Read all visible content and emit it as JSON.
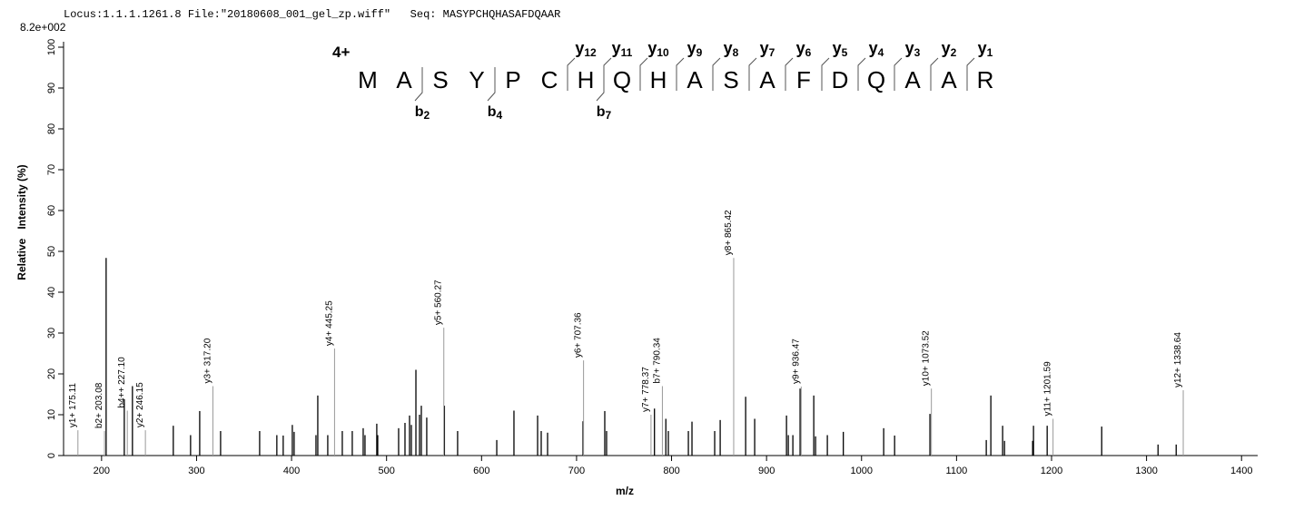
{
  "chart_data": {
    "type": "spectrum",
    "header": "Locus:1.1.1.1261.8 File:\"20180608_001_gel_zp.wiff\"   Seq: MASYPCHQHASAFDQAAR",
    "max_intensity_label": "8.2e+002",
    "x_label": "m/z",
    "y_label": "Relative   Intensity (%)",
    "xlim": [
      160,
      1417
    ],
    "ylim": [
      0,
      101
    ],
    "xticks": [
      200,
      300,
      400,
      500,
      600,
      700,
      800,
      900,
      1000,
      1100,
      1200,
      1300,
      1400
    ],
    "yticks": [
      0,
      10,
      20,
      30,
      40,
      50,
      60,
      70,
      80,
      90,
      100
    ],
    "peak_color": "#000000",
    "annotation_color": "#999999",
    "peaks": {
      "x": [
        204.8,
        223.9,
        232.5,
        275.5,
        293.7,
        303.3,
        325.3,
        366.4,
        384.5,
        391.2,
        400.8,
        402.7,
        425.7,
        427.6,
        438.1,
        453.4,
        463.9,
        475.4,
        477.3,
        489.7,
        490.7,
        512.7,
        519.4,
        524.2,
        526.1,
        530.9,
        534.7,
        536.6,
        542.3,
        560.9,
        574.8,
        616.0,
        634.1,
        659.0,
        662.8,
        669.5,
        706.8,
        729.7,
        731.6,
        782.0,
        794.0,
        796.6,
        817.7,
        821.5,
        845.4,
        851.2,
        878.0,
        887.5,
        921.0,
        922.9,
        927.7,
        935.3,
        949.7,
        951.6,
        964.0,
        980.8,
        1023.3,
        1034.8,
        1072.0,
        1131.3,
        1136.1,
        1148.5,
        1150.5,
        1180.1,
        1181.0,
        1195.4,
        1252.8,
        1312.1,
        1331.2
      ],
      "values": [
        48.4,
        13.8,
        17.0,
        7.3,
        5.0,
        10.9,
        6.0,
        6.0,
        5.0,
        4.9,
        7.5,
        5.8,
        5.0,
        14.7,
        5.0,
        6.0,
        6.0,
        6.7,
        5.0,
        7.8,
        5.0,
        6.7,
        8.0,
        9.8,
        7.5,
        21.0,
        10.0,
        12.2,
        9.3,
        12.2,
        6.0,
        3.8,
        11.0,
        9.8,
        6.0,
        5.6,
        8.4,
        10.9,
        6.0,
        11.5,
        9.0,
        6.0,
        6.0,
        8.3,
        6.0,
        8.7,
        14.4,
        9.0,
        9.8,
        5.0,
        5.0,
        16.4,
        14.7,
        4.7,
        5.0,
        5.8,
        6.7,
        4.9,
        10.2,
        3.8,
        14.7,
        7.3,
        3.6,
        3.6,
        7.3,
        7.3,
        7.1,
        2.7,
        2.7
      ]
    },
    "annotated_peaks": {
      "x": [
        175.11,
        203.08,
        227.1,
        246.15,
        317.2,
        445.25,
        560.27,
        707.36,
        778.37,
        790.34,
        865.42,
        936.47,
        1073.52,
        1201.59,
        1338.64
      ],
      "values": [
        6.2,
        6.0,
        11.0,
        6.2,
        17.0,
        26.2,
        31.3,
        23.3,
        10.0,
        17.0,
        48.4,
        16.9,
        16.4,
        9.0,
        16.0
      ],
      "value_labels": [
        "y1+ 175.11",
        "b2+ 203.08",
        "b4++ 227.10",
        "y2+ 246.15",
        "y3+ 317.20",
        "y4+ 445.25",
        "y5+ 560.27",
        "y6+ 707.36",
        "y7+ 778.37",
        "b7+ 790.34",
        "y8+ 865.42",
        "y9+ 936.47",
        "y10+ 1073.52",
        "y11+ 1201.59",
        "y12+ 1338.64"
      ],
      "colors": [
        "#999999",
        "#000000",
        "#000000",
        "#999999",
        "#999999",
        "#999999",
        "#999999",
        "#999999",
        "#999999",
        "#000000",
        "#999999",
        "#999999",
        "#999999",
        "#999999",
        "#999999"
      ]
    },
    "sequence_annotation": {
      "charge": "4+",
      "residues": [
        "M",
        "A",
        "S",
        "Y",
        "P",
        "C",
        "H",
        "Q",
        "H",
        "A",
        "S",
        "A",
        "F",
        "D",
        "Q",
        "A",
        "A",
        "R"
      ],
      "y_ions": [
        {
          "letter": "y",
          "sub": "12"
        },
        {
          "letter": "y",
          "sub": "11"
        },
        {
          "letter": "y",
          "sub": "10"
        },
        {
          "letter": "y",
          "sub": "9"
        },
        {
          "letter": "y",
          "sub": "8"
        },
        {
          "letter": "y",
          "sub": "7"
        },
        {
          "letter": "y",
          "sub": "6"
        },
        {
          "letter": "y",
          "sub": "5"
        },
        {
          "letter": "y",
          "sub": "4"
        },
        {
          "letter": "y",
          "sub": "3"
        },
        {
          "letter": "y",
          "sub": "2"
        },
        {
          "letter": "y",
          "sub": "1"
        }
      ],
      "b_ions": [
        {
          "letter": "b",
          "sub": "2"
        },
        {
          "letter": "b",
          "sub": "4"
        },
        {
          "letter": "b",
          "sub": "7"
        }
      ]
    }
  }
}
